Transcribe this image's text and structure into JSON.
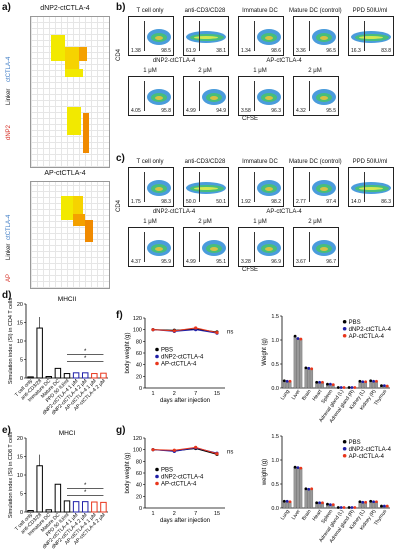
{
  "panels": {
    "a": "a)",
    "b": "b)",
    "c": "c)",
    "d": "d)",
    "e": "e)",
    "f": "f)",
    "g": "g)"
  },
  "heatmap": {
    "top_title": "dNP2-ctCTLA-4",
    "bottom_title": "AP-ctCTLA-4",
    "ctcta": "ctCTLA-4",
    "linker": "Linker",
    "dnp2": "dNP2",
    "ap": "AP"
  },
  "flow_b": {
    "row1": [
      {
        "title": "T cell only",
        "l": "1.38",
        "r": "98.5"
      },
      {
        "title": "anti-CD3/CD28",
        "l": "61.9",
        "r": "38.1"
      },
      {
        "title": "Immature DC",
        "l": "1.34",
        "r": "98.6"
      },
      {
        "title": "Mature DC (control)",
        "l": "3.36",
        "r": "96.5"
      },
      {
        "title": "PPD 50IU/ml",
        "l": "16.3",
        "r": "83.8"
      }
    ],
    "group1": "dNP2-ctCTLA-4",
    "group2": "AP-ctCTLA-4",
    "row2": [
      {
        "title": "1 μM",
        "l": "4.05",
        "r": "95.8"
      },
      {
        "title": "2 μM",
        "l": "4.99",
        "r": "94.9"
      },
      {
        "title": "1 μM",
        "l": "3.58",
        "r": "96.3"
      },
      {
        "title": "2 μM",
        "l": "4.32",
        "r": "95.5"
      }
    ],
    "ylabel": "CD4",
    "xlabel": "CFSE"
  },
  "flow_c": {
    "row1": [
      {
        "title": "T cell only",
        "l": "1.75",
        "r": "98.3"
      },
      {
        "title": "anti-CD3/CD28",
        "l": "50.0",
        "r": "50.1"
      },
      {
        "title": "Immature DC",
        "l": "1.92",
        "r": "98.2"
      },
      {
        "title": "Mature DC (control)",
        "l": "2.77",
        "r": "97.4"
      },
      {
        "title": "PPD 50IU/ml",
        "l": "14.0",
        "r": "86.3"
      }
    ],
    "group1": "dNP2-ctCTLA-4",
    "group2": "AP-ctCTLA-4",
    "row2": [
      {
        "title": "1 μM",
        "l": "4.37",
        "r": "95.9"
      },
      {
        "title": "2 μM",
        "l": "4.99",
        "r": "95.1"
      },
      {
        "title": "1 μM",
        "l": "3.28",
        "r": "96.9"
      },
      {
        "title": "2 μM",
        "l": "3.67",
        "r": "96.7"
      }
    ],
    "ylabel": "CD4",
    "xlabel": "CFSE"
  },
  "chart_data": [
    {
      "panel": "d",
      "type": "bar",
      "title": "MHCII",
      "ylabel": "Simulation index (SI) in CD4 T cells",
      "ylim": [
        0,
        20
      ],
      "yticks": [
        "0",
        "5",
        "10",
        "15",
        "20"
      ],
      "categories": [
        "T cell only",
        "anti-CD3/28",
        "Immature DC",
        "Mature DC",
        "PPD 50 IU/ml",
        "dNP2-ctCTLA-4 1 μM",
        "dNP2-ctCTLA-4 2 μM",
        "AP-ctCTLA-4 1 μM",
        "AP-ctCTLA-4 2 μM"
      ],
      "values": [
        0.3,
        13.5,
        0.4,
        2.6,
        1.2,
        1.4,
        1.4,
        1.2,
        1.3
      ],
      "colors": [
        "#000000",
        "#000000",
        "#000000",
        "#000000",
        "#000000",
        "#1f1fa8",
        "#1f1fa8",
        "#e8361c",
        "#e8361c"
      ],
      "significance": [
        "*",
        "*"
      ]
    },
    {
      "panel": "e",
      "type": "bar",
      "title": "MHCI",
      "ylabel": "Simulation index (SI) in CD8 T cells",
      "ylim": [
        0,
        20
      ],
      "yticks": [
        "0",
        "5",
        "10",
        "15",
        "20"
      ],
      "categories": [
        "T cell only",
        "anti-CD3/28",
        "Immature DC",
        "Mature DC",
        "PPD 50 IU/ml",
        "dNP2-ctCTLA-4 1 μM",
        "dNP2-ctCTLA-4 2 μM",
        "AP-ctCTLA-4 1 μM",
        "AP-ctCTLA-4 2 μM"
      ],
      "values": [
        0.4,
        12.5,
        0.6,
        7.5,
        3.0,
        2.8,
        2.8,
        2.7,
        2.6
      ],
      "colors": [
        "#000000",
        "#000000",
        "#000000",
        "#000000",
        "#000000",
        "#1f1fa8",
        "#1f1fa8",
        "#e8361c",
        "#e8361c"
      ],
      "significance": [
        "*",
        "*"
      ]
    },
    {
      "panel": "f-left",
      "type": "line",
      "ylabel": "body weight (g)",
      "xlabel": "days after injection",
      "x": [
        "1",
        "2",
        "7",
        "15"
      ],
      "ylim": [
        0,
        120
      ],
      "yticks": [
        "0",
        "20",
        "40",
        "60",
        "80",
        "100",
        "120"
      ],
      "ns": "ns",
      "series": [
        {
          "name": "PBS",
          "color": "#000000",
          "values": [
            100,
            99,
            101,
            96
          ]
        },
        {
          "name": "dNP2-ctCTLA-4",
          "color": "#1f1fa8",
          "values": [
            100,
            97,
            100,
            94
          ]
        },
        {
          "name": "AP-ctCTLA-4",
          "color": "#e8361c",
          "values": [
            100,
            98,
            103,
            95
          ]
        }
      ]
    },
    {
      "panel": "f-right",
      "type": "bar",
      "ylabel": "Weight (g)",
      "ylim": [
        0,
        1.5
      ],
      "yticks": [
        "0.0",
        "0.5",
        "1.0",
        "1.5"
      ],
      "categories": [
        "Lung",
        "Liver",
        "Brain",
        "Heart",
        "Spleen",
        "Adrenal gland (L)",
        "Adrenal gland (R)",
        "Kidney (L)",
        "Kidney (R)",
        "Thymus"
      ],
      "series": [
        {
          "name": "PBS",
          "color": "#000000",
          "values": [
            0.15,
            1.08,
            0.42,
            0.12,
            0.08,
            0.01,
            0.01,
            0.14,
            0.15,
            0.05
          ]
        },
        {
          "name": "dNP2-ctCTLA-4",
          "color": "#1f1fa8",
          "values": [
            0.14,
            1.03,
            0.41,
            0.12,
            0.08,
            0.01,
            0.01,
            0.13,
            0.14,
            0.05
          ]
        },
        {
          "name": "AP-ctCTLA-4",
          "color": "#e8361c",
          "values": [
            0.14,
            1.02,
            0.4,
            0.12,
            0.07,
            0.01,
            0.01,
            0.13,
            0.14,
            0.04
          ]
        }
      ]
    },
    {
      "panel": "g-left",
      "type": "line",
      "ylabel": "body weight (g)",
      "xlabel": "days after injection",
      "x": [
        "1",
        "2",
        "7",
        "15"
      ],
      "ylim": [
        0,
        120
      ],
      "yticks": [
        "0",
        "20",
        "40",
        "60",
        "80",
        "100",
        "120"
      ],
      "ns": "ns",
      "series": [
        {
          "name": "PBS",
          "color": "#000000",
          "values": [
            100,
            98,
            102,
            92
          ]
        },
        {
          "name": "dNP2-ctCTLA-4",
          "color": "#1f1fa8",
          "values": [
            100,
            97,
            103,
            94
          ]
        },
        {
          "name": "AP-ctCTLA-4",
          "color": "#e8361c",
          "values": [
            100,
            99,
            104,
            93
          ]
        }
      ]
    },
    {
      "panel": "g-right",
      "type": "bar",
      "ylabel": "weight (g)",
      "ylim": [
        0,
        1.5
      ],
      "yticks": [
        "0.0",
        "0.5",
        "1.0",
        "1.5"
      ],
      "categories": [
        "Lung",
        "Liver",
        "Brain",
        "Heart",
        "Spleen",
        "Adrenal gland (L)",
        "Adrenal gland (R)",
        "Kidney (L)",
        "Kidney (R)",
        "Thymus"
      ],
      "series": [
        {
          "name": "PBS",
          "color": "#000000",
          "values": [
            0.14,
            0.85,
            0.4,
            0.11,
            0.08,
            0.01,
            0.01,
            0.13,
            0.14,
            0.04
          ]
        },
        {
          "name": "dNP2-ctCTLA-4",
          "color": "#1f1fa8",
          "values": [
            0.14,
            0.84,
            0.39,
            0.11,
            0.07,
            0.01,
            0.01,
            0.12,
            0.13,
            0.04
          ]
        },
        {
          "name": "AP-ctCTLA-4",
          "color": "#e8361c",
          "values": [
            0.13,
            0.83,
            0.4,
            0.11,
            0.07,
            0.01,
            0.01,
            0.12,
            0.13,
            0.04
          ]
        }
      ]
    }
  ]
}
